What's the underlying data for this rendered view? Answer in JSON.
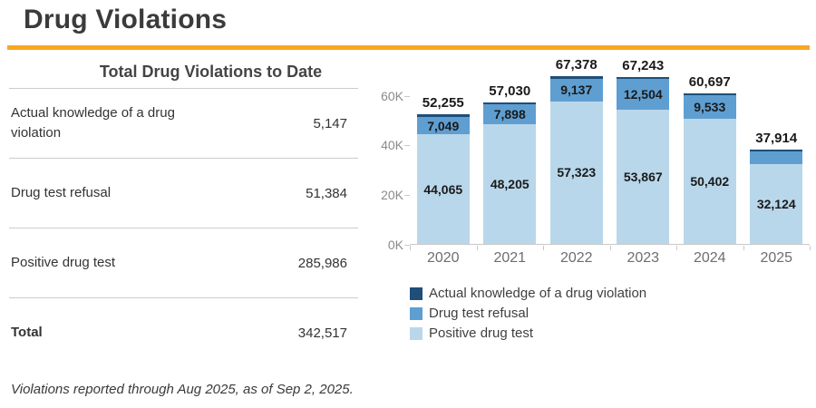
{
  "page": {
    "title": "Drug Violations",
    "accent_color": "#F7A823"
  },
  "summary_table": {
    "title": "Total Drug Violations to Date",
    "rows": [
      {
        "label": "Actual knowledge of a drug violation",
        "value": "5,147"
      },
      {
        "label": "Drug test refusal",
        "value": "51,384"
      },
      {
        "label": "Positive drug test",
        "value": "285,986"
      },
      {
        "label": "Total",
        "value": "342,517"
      }
    ],
    "footnote": "Violations reported through Aug 2025, as of Sep 2, 2025."
  },
  "chart_data": {
    "type": "bar",
    "stacked": true,
    "title": "",
    "xlabel": "",
    "ylabel": "",
    "categories": [
      "2020",
      "2021",
      "2022",
      "2023",
      "2024",
      "2025"
    ],
    "series": [
      {
        "name": "Positive drug test",
        "color": "#B9D7EB",
        "values": [
          44065,
          48205,
          57323,
          53867,
          50402,
          32124
        ],
        "labels": [
          "44,065",
          "48,205",
          "57,323",
          "53,867",
          "50,402",
          "32,124"
        ]
      },
      {
        "name": "Drug test refusal",
        "color": "#5F9ED1",
        "values": [
          7049,
          7898,
          9137,
          12504,
          9533,
          5263
        ],
        "labels": [
          "7,049",
          "7,898",
          "9,137",
          "12,504",
          "9,533",
          ""
        ]
      },
      {
        "name": "Actual knowledge of a drug violation",
        "color": "#1F4E79",
        "values": [
          1141,
          927,
          918,
          872,
          762,
          527
        ],
        "labels": [
          "",
          "",
          "",
          "",
          "",
          ""
        ]
      }
    ],
    "totals": [
      52255,
      57030,
      67378,
      67243,
      60697,
      37914
    ],
    "total_labels": [
      "52,255",
      "57,030",
      "67,378",
      "67,243",
      "60,697",
      "37,914"
    ],
    "y_ticks": [
      {
        "label": "0K",
        "value": 0
      },
      {
        "label": "20K",
        "value": 20000
      },
      {
        "label": "40K",
        "value": 40000
      },
      {
        "label": "60K",
        "value": 60000
      }
    ],
    "ylim": [
      0,
      73000
    ],
    "grid": false,
    "legend_position": "bottom",
    "legend": [
      "Actual knowledge of a drug violation",
      "Drug test refusal",
      "Positive drug test"
    ]
  }
}
